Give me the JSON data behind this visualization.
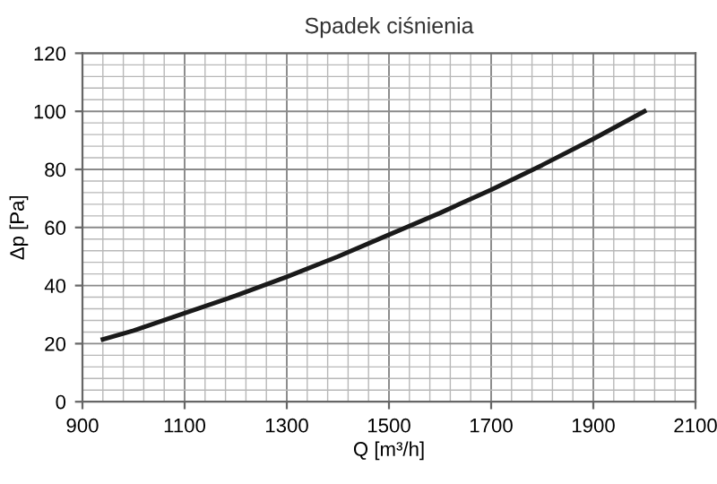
{
  "chart_data": {
    "type": "line",
    "title": "Spadek ciśnienia",
    "xlabel": "Q [m³/h]",
    "ylabel": "Δp [Pa]",
    "x": [
      940,
      1000,
      1100,
      1200,
      1300,
      1400,
      1500,
      1600,
      1700,
      1800,
      1900,
      2000
    ],
    "series": [
      {
        "color": "#1a1a1a",
        "values": [
          21.5,
          24.5,
          30.5,
          36.5,
          43,
          50,
          57.5,
          65,
          73,
          81.5,
          90.5,
          100
        ]
      }
    ],
    "xlim": [
      900,
      2100
    ],
    "xticks": [
      900,
      1100,
      1300,
      1500,
      1700,
      1900,
      2100
    ],
    "ylim": [
      0,
      120
    ],
    "yticks": [
      0,
      20,
      40,
      60,
      80,
      100,
      120
    ],
    "grid": true,
    "marker": "none",
    "line_style": "solid"
  }
}
